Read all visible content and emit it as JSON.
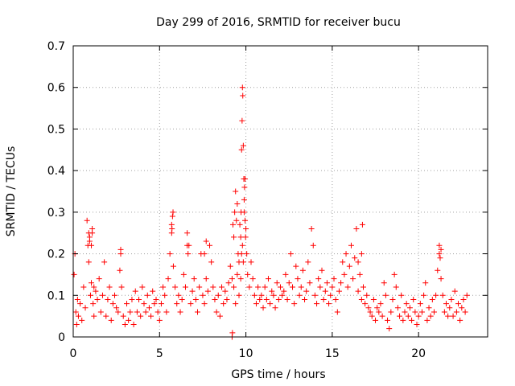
{
  "chart_data": {
    "type": "scatter",
    "title": "Day 299 of 2016, SRMTID for receiver bucu",
    "xlabel": "GPS time / hours",
    "ylabel": "SRMTID / TECUs",
    "xlim": [
      0,
      24
    ],
    "ylim": [
      0,
      0.7
    ],
    "xticks": [
      0,
      5,
      10,
      15,
      20
    ],
    "xtick_labels": [
      "0",
      "5",
      "10",
      "15",
      "20"
    ],
    "yticks": [
      0,
      0.1,
      0.2,
      0.3,
      0.4,
      0.5,
      0.6,
      0.7
    ],
    "ytick_labels": [
      "0",
      "0.1",
      "0.2",
      "0.3",
      "0.4",
      "0.5",
      "0.6",
      "0.7"
    ],
    "grid": true,
    "marker": "+",
    "color": "#ff0000",
    "series": [
      {
        "name": "SRMTID",
        "x": [
          0.05,
          0.1,
          0.15,
          0.2,
          0.25,
          0.3,
          0.4,
          0.5,
          0.6,
          0.7,
          0.8,
          0.85,
          0.9,
          0.95,
          1.0,
          1.05,
          1.1,
          1.15,
          1.2,
          1.3,
          1.4,
          1.5,
          1.6,
          1.7,
          1.8,
          1.9,
          2.0,
          2.1,
          2.2,
          2.3,
          2.4,
          2.5,
          2.6,
          2.7,
          2.75,
          2.8,
          2.9,
          3.0,
          3.1,
          3.2,
          3.3,
          3.4,
          3.5,
          3.6,
          3.7,
          3.8,
          3.9,
          4.0,
          4.1,
          4.2,
          4.3,
          4.4,
          4.5,
          4.6,
          4.7,
          4.8,
          4.9,
          5.0,
          5.1,
          5.2,
          5.3,
          5.4,
          5.5,
          5.6,
          5.7,
          5.75,
          5.8,
          5.9,
          6.0,
          6.1,
          6.2,
          6.3,
          6.4,
          6.5,
          6.6,
          6.7,
          6.8,
          6.9,
          7.0,
          7.1,
          7.2,
          7.3,
          7.4,
          7.5,
          7.6,
          7.7,
          7.8,
          7.9,
          8.0,
          8.1,
          8.2,
          8.3,
          8.4,
          8.5,
          8.6,
          8.7,
          8.8,
          8.9,
          9.0,
          9.1,
          9.2,
          9.3,
          9.4,
          9.5,
          9.6,
          9.7,
          9.75,
          9.8,
          9.85,
          9.9,
          9.95,
          10.0,
          10.1,
          10.2,
          10.3,
          10.4,
          10.5,
          10.6,
          10.7,
          10.8,
          10.9,
          11.0,
          11.1,
          11.2,
          11.3,
          11.4,
          11.5,
          11.6,
          11.7,
          11.8,
          11.9,
          12.0,
          12.1,
          12.2,
          12.3,
          12.4,
          12.5,
          12.6,
          12.7,
          12.8,
          12.9,
          13.0,
          13.1,
          13.2,
          13.3,
          13.4,
          13.5,
          13.6,
          13.7,
          13.8,
          13.9,
          14.0,
          14.1,
          14.2,
          14.3,
          14.4,
          14.5,
          14.6,
          14.7,
          14.8,
          14.9,
          15.0,
          15.1,
          15.2,
          15.3,
          15.4,
          15.5,
          15.6,
          15.7,
          15.8,
          15.9,
          16.0,
          16.1,
          16.2,
          16.3,
          16.4,
          16.5,
          16.6,
          16.7,
          16.8,
          16.9,
          17.0,
          17.1,
          17.2,
          17.3,
          17.4,
          17.5,
          17.6,
          17.7,
          17.8,
          17.9,
          18.0,
          18.1,
          18.2,
          18.3,
          18.4,
          18.5,
          18.6,
          18.7,
          18.8,
          18.9,
          19.0,
          19.1,
          19.2,
          19.3,
          19.4,
          19.5,
          19.6,
          19.7,
          19.8,
          19.9,
          20.0,
          20.1,
          20.2,
          20.3,
          20.4,
          20.5,
          20.6,
          20.7,
          20.8,
          20.9,
          21.0,
          21.1,
          21.2,
          21.3,
          21.4,
          21.5,
          21.6,
          21.7,
          21.8,
          21.9,
          22.0,
          22.1,
          22.2,
          22.3,
          22.4,
          22.5,
          22.6,
          22.7,
          22.8,
          9.25,
          9.3,
          9.35,
          9.4,
          9.45,
          9.5,
          9.55,
          9.6,
          9.65,
          9.7,
          9.72,
          9.75,
          9.78,
          9.8,
          9.82,
          9.85,
          9.88,
          9.9,
          9.92,
          9.95,
          9.98,
          10.05,
          0.9,
          0.95,
          1.05,
          1.1,
          1.2,
          2.75,
          5.7,
          5.72,
          5.78,
          6.6,
          6.65,
          7.6,
          7.7,
          16.5,
          16.7,
          16.75,
          21.2,
          21.25,
          21.3,
          9.2,
          9.22
        ],
        "y": [
          0.15,
          0.2,
          0.06,
          0.03,
          0.09,
          0.05,
          0.08,
          0.04,
          0.12,
          0.07,
          0.28,
          0.22,
          0.18,
          0.24,
          0.1,
          0.13,
          0.26,
          0.08,
          0.05,
          0.11,
          0.09,
          0.14,
          0.06,
          0.1,
          0.18,
          0.05,
          0.09,
          0.12,
          0.04,
          0.08,
          0.1,
          0.07,
          0.06,
          0.16,
          0.2,
          0.12,
          0.05,
          0.03,
          0.08,
          0.04,
          0.06,
          0.09,
          0.03,
          0.11,
          0.06,
          0.09,
          0.05,
          0.12,
          0.08,
          0.06,
          0.1,
          0.07,
          0.05,
          0.11,
          0.08,
          0.09,
          0.06,
          0.04,
          0.08,
          0.12,
          0.1,
          0.06,
          0.14,
          0.2,
          0.25,
          0.29,
          0.17,
          0.12,
          0.08,
          0.1,
          0.06,
          0.09,
          0.15,
          0.12,
          0.25,
          0.22,
          0.08,
          0.11,
          0.14,
          0.09,
          0.06,
          0.12,
          0.2,
          0.1,
          0.08,
          0.14,
          0.11,
          0.22,
          0.18,
          0.12,
          0.09,
          0.06,
          0.1,
          0.05,
          0.12,
          0.08,
          0.11,
          0.09,
          0.13,
          0.17,
          0.14,
          0.12,
          0.08,
          0.15,
          0.1,
          0.14,
          0.2,
          0.22,
          0.18,
          0.3,
          0.38,
          0.26,
          0.15,
          0.12,
          0.18,
          0.14,
          0.1,
          0.08,
          0.12,
          0.09,
          0.1,
          0.07,
          0.12,
          0.09,
          0.14,
          0.08,
          0.11,
          0.1,
          0.07,
          0.13,
          0.09,
          0.12,
          0.1,
          0.11,
          0.15,
          0.09,
          0.13,
          0.2,
          0.12,
          0.08,
          0.17,
          0.14,
          0.1,
          0.12,
          0.16,
          0.09,
          0.11,
          0.18,
          0.13,
          0.26,
          0.22,
          0.1,
          0.08,
          0.14,
          0.12,
          0.16,
          0.09,
          0.11,
          0.13,
          0.08,
          0.1,
          0.12,
          0.14,
          0.09,
          0.06,
          0.11,
          0.13,
          0.18,
          0.15,
          0.2,
          0.12,
          0.17,
          0.22,
          0.14,
          0.19,
          0.26,
          0.11,
          0.15,
          0.09,
          0.12,
          0.08,
          0.1,
          0.07,
          0.06,
          0.05,
          0.09,
          0.04,
          0.07,
          0.06,
          0.08,
          0.05,
          0.13,
          0.1,
          0.04,
          0.02,
          0.06,
          0.09,
          0.15,
          0.12,
          0.07,
          0.05,
          0.1,
          0.04,
          0.06,
          0.08,
          0.05,
          0.07,
          0.04,
          0.09,
          0.06,
          0.03,
          0.05,
          0.08,
          0.06,
          0.1,
          0.13,
          0.04,
          0.07,
          0.05,
          0.09,
          0.06,
          0.1,
          0.16,
          0.2,
          0.14,
          0.1,
          0.06,
          0.08,
          0.05,
          0.07,
          0.09,
          0.05,
          0.11,
          0.06,
          0.08,
          0.04,
          0.07,
          0.09,
          0.06,
          0.1,
          0.27,
          0.24,
          0.3,
          0.35,
          0.28,
          0.32,
          0.2,
          0.18,
          0.27,
          0.24,
          0.3,
          0.45,
          0.52,
          0.6,
          0.58,
          0.46,
          0.38,
          0.33,
          0.36,
          0.28,
          0.24,
          0.2,
          0.25,
          0.23,
          0.22,
          0.25,
          0.12,
          0.21,
          0.27,
          0.26,
          0.3,
          0.22,
          0.2,
          0.2,
          0.23,
          0.18,
          0.2,
          0.27,
          0.22,
          0.19,
          0.21,
          0.0,
          0.01
        ]
      }
    ]
  }
}
